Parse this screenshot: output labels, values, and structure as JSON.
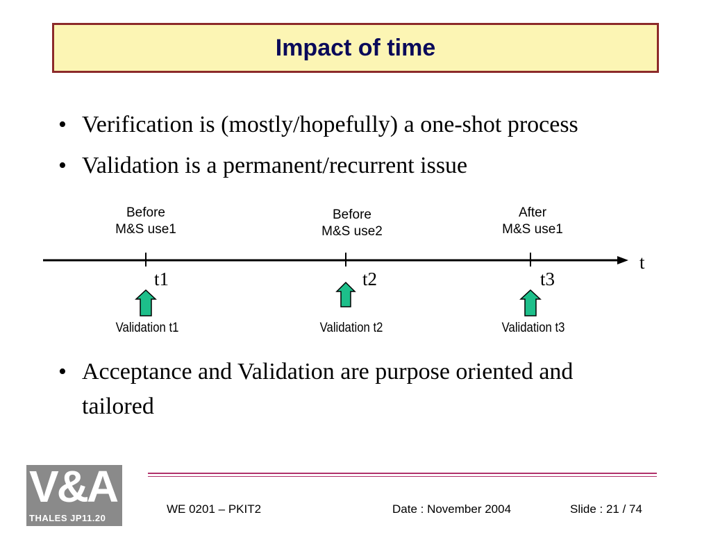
{
  "title": "Impact of time",
  "bullets": [
    "Verification is (mostly/hopefully) a one-shot process",
    "Validation is a permanent/recurrent issue",
    "Acceptance and Validation are purpose oriented and tailored"
  ],
  "bullet_symbol": "•",
  "timeline": {
    "axis_label": "t",
    "points": [
      {
        "above_line1": "Before",
        "above_line2": "M&S use1",
        "tick_label": "t1",
        "validation": "Validation t1"
      },
      {
        "above_line1": "Before",
        "above_line2": "M&S use2",
        "tick_label": "t2",
        "validation": "Validation t2"
      },
      {
        "above_line1": "After",
        "above_line2": "M&S use1",
        "tick_label": "t3",
        "validation": "Validation t3"
      }
    ]
  },
  "footer": {
    "left": "WE 0201 – PKIT2",
    "date": "Date : November 2004",
    "slide": "Slide : 21 / 74"
  },
  "logo": {
    "text_big_line1": "V&A",
    "text_small": "THALES JP11.20"
  },
  "colors": {
    "title_bg": "#fcf5b4",
    "title_border": "#8c2a2a",
    "title_text": "#0a0a5a",
    "arrow_fill": "#1dbf8a",
    "footer_line": "#b0306a",
    "logo_bg": "#8a8a8a"
  }
}
